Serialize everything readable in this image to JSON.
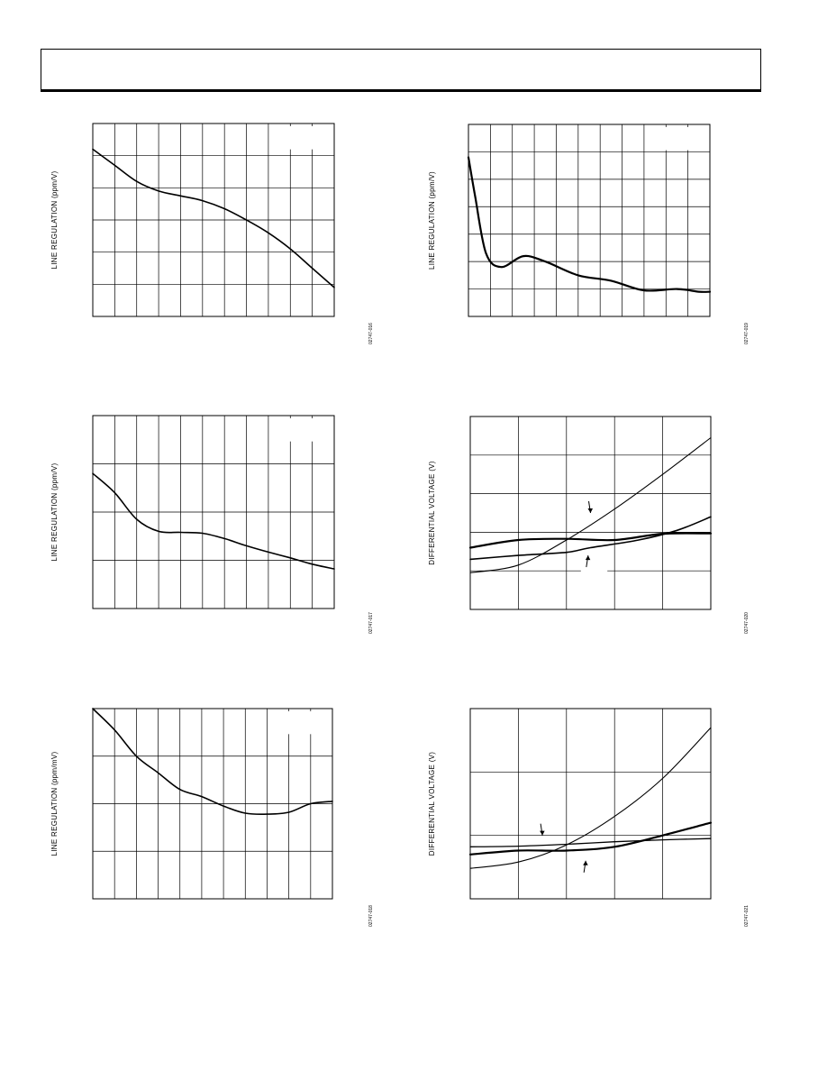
{
  "charts": [
    {
      "id": "c1",
      "ylabel": "LINE REGULATION (ppm/V)",
      "code": "02747-016",
      "cols": 11,
      "rows": 6,
      "legend_blank": true,
      "series": [
        {
          "name": "",
          "width": 1.6,
          "points": [
            [
              0,
              5.2
            ],
            [
              1,
              4.7
            ],
            [
              2,
              4.2
            ],
            [
              3,
              3.9
            ],
            [
              4,
              3.75
            ],
            [
              5,
              3.6
            ],
            [
              6,
              3.35
            ],
            [
              7,
              3.0
            ],
            [
              8,
              2.6
            ],
            [
              9,
              2.1
            ],
            [
              10,
              1.5
            ],
            [
              11,
              0.9
            ]
          ]
        }
      ]
    },
    {
      "id": "c2",
      "ylabel": "LINE REGULATION (ppm/V)",
      "code": "02747-019",
      "cols": 11,
      "rows": 7,
      "legend_blank": true,
      "series": [
        {
          "name": "",
          "width": 2.2,
          "points": [
            [
              0,
              5.8
            ],
            [
              0.3,
              4.4
            ],
            [
              0.8,
              2.3
            ],
            [
              1.5,
              1.8
            ],
            [
              2.5,
              2.2
            ],
            [
              3.5,
              2.0
            ],
            [
              5,
              1.5
            ],
            [
              6.5,
              1.3
            ],
            [
              8,
              0.95
            ],
            [
              9.5,
              1.0
            ],
            [
              10.5,
              0.9
            ],
            [
              11,
              0.9
            ]
          ]
        }
      ]
    },
    {
      "id": "c3",
      "ylabel": "LINE REGULATION (ppm/V)",
      "code": "02747-017",
      "cols": 11,
      "rows": 4,
      "legend_blank": true,
      "series": [
        {
          "name": "",
          "width": 1.6,
          "points": [
            [
              0,
              2.8
            ],
            [
              1,
              2.4
            ],
            [
              2,
              1.85
            ],
            [
              3,
              1.6
            ],
            [
              4,
              1.58
            ],
            [
              5,
              1.56
            ],
            [
              6,
              1.45
            ],
            [
              7,
              1.3
            ],
            [
              8,
              1.17
            ],
            [
              9,
              1.05
            ],
            [
              10,
              0.92
            ],
            [
              11,
              0.82
            ]
          ]
        }
      ]
    },
    {
      "id": "c4",
      "ylabel": "DIFFERENTIAL VOLTAGE (V)",
      "code": "02747-020",
      "cols": 5,
      "rows": 5,
      "legend_blank": false,
      "series": [
        {
          "name": "",
          "width": 1.1,
          "points": [
            [
              0,
              0.95
            ],
            [
              1,
              1.15
            ],
            [
              2,
              1.8
            ],
            [
              3,
              2.6
            ],
            [
              4,
              3.5
            ],
            [
              5,
              4.45
            ]
          ]
        },
        {
          "name": "",
          "width": 2.2,
          "points": [
            [
              0,
              1.6
            ],
            [
              1,
              1.8
            ],
            [
              2,
              1.83
            ],
            [
              3,
              1.8
            ],
            [
              4,
              1.96
            ],
            [
              5,
              1.97
            ]
          ]
        },
        {
          "name": "",
          "width": 1.6,
          "points": [
            [
              0,
              1.3
            ],
            [
              1,
              1.4
            ],
            [
              2,
              1.48
            ],
            [
              2.5,
              1.6
            ],
            [
              3.5,
              1.8
            ],
            [
              4.3,
              2.05
            ],
            [
              5,
              2.4
            ]
          ]
        }
      ],
      "arrows": [
        {
          "x": 2.5,
          "y": 2.5,
          "dir": "down"
        },
        {
          "x": 2.45,
          "y": 1.4,
          "dir": "up"
        }
      ]
    },
    {
      "id": "c5",
      "ylabel": "LINE REGULATION (ppm/mV)",
      "code": "02747-018",
      "cols": 11,
      "rows": 4,
      "legend_blank": true,
      "series": [
        {
          "name": "",
          "width": 1.6,
          "points": [
            [
              0,
              4.0
            ],
            [
              1,
              3.55
            ],
            [
              2,
              3.0
            ],
            [
              3,
              2.65
            ],
            [
              4,
              2.3
            ],
            [
              5,
              2.15
            ],
            [
              6,
              1.95
            ],
            [
              7,
              1.8
            ],
            [
              8,
              1.78
            ],
            [
              9,
              1.82
            ],
            [
              10,
              2.0
            ],
            [
              11,
              2.05
            ]
          ]
        }
      ]
    },
    {
      "id": "c6",
      "ylabel": "DIFFERENTIAL VOLTAGE (V)",
      "code": "02747-021",
      "cols": 5,
      "rows": 3,
      "legend_blank": false,
      "series": [
        {
          "name": "",
          "width": 1.1,
          "points": [
            [
              0,
              0.48
            ],
            [
              1,
              0.58
            ],
            [
              2,
              0.85
            ],
            [
              3,
              1.3
            ],
            [
              4,
              1.9
            ],
            [
              5,
              2.7
            ]
          ]
        },
        {
          "name": "",
          "width": 1.3,
          "points": [
            [
              0,
              0.82
            ],
            [
              1,
              0.83
            ],
            [
              2,
              0.86
            ],
            [
              3,
              0.9
            ],
            [
              4,
              0.93
            ],
            [
              5,
              0.95
            ]
          ]
        },
        {
          "name": "",
          "width": 2.2,
          "points": [
            [
              0,
              0.7
            ],
            [
              1,
              0.76
            ],
            [
              2,
              0.76
            ],
            [
              3,
              0.82
            ],
            [
              4,
              1.0
            ],
            [
              5,
              1.2
            ]
          ]
        }
      ],
      "arrows": [
        {
          "x": 1.5,
          "y": 1.0,
          "dir": "down"
        },
        {
          "x": 2.4,
          "y": 0.6,
          "dir": "up"
        }
      ]
    }
  ]
}
